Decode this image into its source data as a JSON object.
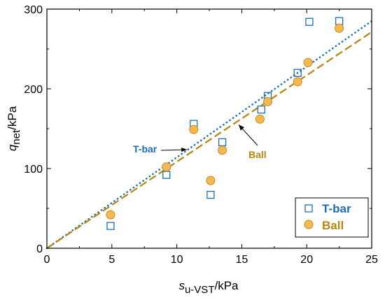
{
  "chart_data": {
    "type": "scatter",
    "xlabel": {
      "main": "s",
      "sub": "u-VST",
      "unit": "/kPa"
    },
    "ylabel": {
      "main": "q",
      "sub": "net",
      "unit": "/kPa"
    },
    "xlim": [
      0,
      25
    ],
    "ylim": [
      0,
      300
    ],
    "xticks": [
      "0",
      "5",
      "10",
      "15",
      "20",
      "25"
    ],
    "yticks": [
      "0",
      "100",
      "200",
      "300"
    ],
    "grid": false,
    "legend_position": "bottom-right",
    "series": [
      {
        "name": "T-bar",
        "marker": "open-square",
        "color": "#1a6fb8",
        "x": [
          4.9,
          9.2,
          11.3,
          12.6,
          13.5,
          16.5,
          17.0,
          19.3,
          20.2,
          22.5
        ],
        "y": [
          28,
          92,
          156,
          67,
          133,
          174,
          191,
          220,
          284,
          285
        ]
      },
      {
        "name": "Ball",
        "marker": "filled-circle",
        "color": "#f6b94e",
        "edge_color": "#c9872a",
        "x": [
          4.9,
          9.2,
          11.3,
          12.6,
          13.5,
          16.4,
          17.0,
          19.3,
          20.1,
          22.5
        ],
        "y": [
          42,
          102,
          149,
          85,
          123,
          162,
          184,
          209,
          233,
          276
        ]
      }
    ],
    "fit_lines": [
      {
        "label": "T-bar",
        "style": "dotted",
        "color": "#1a6fb8",
        "slope": 11.4,
        "x": [
          0,
          25
        ]
      },
      {
        "label": "Ball",
        "style": "dashed",
        "color": "#b8860b",
        "slope": 10.85,
        "x": [
          0,
          25
        ]
      }
    ],
    "annotations": [
      {
        "text": "T-bar",
        "color": "#1a6fb8",
        "points_to": "T-bar"
      },
      {
        "text": "Ball",
        "color": "#b8860b",
        "points_to": "Ball"
      }
    ]
  }
}
